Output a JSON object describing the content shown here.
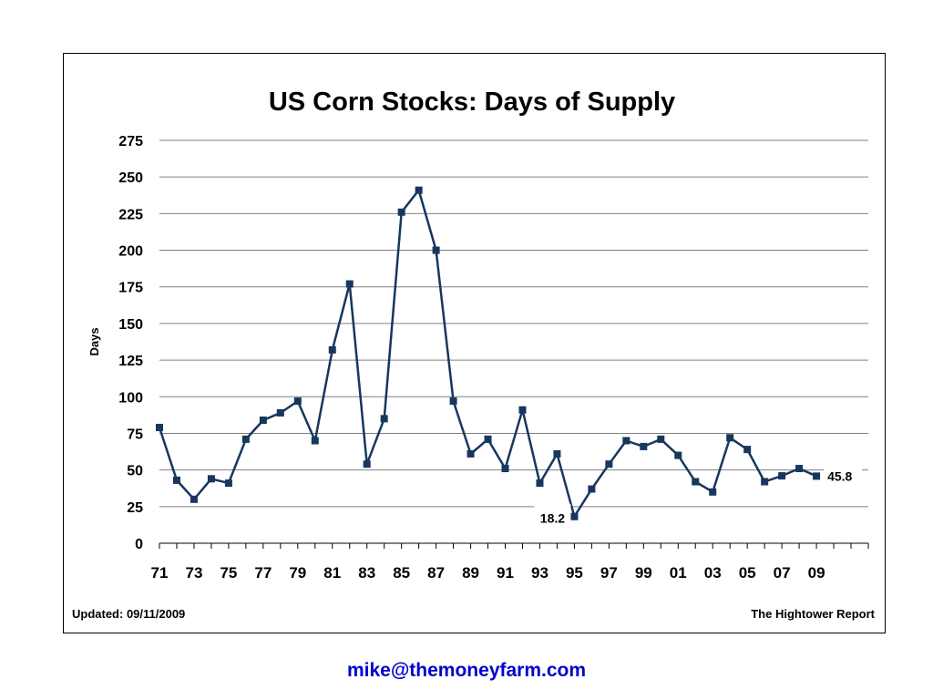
{
  "chart_data": {
    "type": "line",
    "title": "US Corn Stocks: Days of Supply",
    "ylabel": "Days",
    "xlabel": "",
    "ylim": [
      0,
      275
    ],
    "yticks": [
      0,
      25,
      50,
      75,
      100,
      125,
      150,
      175,
      200,
      225,
      250,
      275
    ],
    "xlim": [
      1971,
      2012
    ],
    "x_tick_labels": [
      "71",
      "73",
      "75",
      "77",
      "79",
      "81",
      "83",
      "85",
      "87",
      "89",
      "91",
      "93",
      "95",
      "97",
      "99",
      "01",
      "03",
      "05",
      "07",
      "09"
    ],
    "x_tick_label_years": [
      1971,
      1973,
      1975,
      1977,
      1979,
      1981,
      1983,
      1985,
      1987,
      1989,
      1991,
      1993,
      1995,
      1997,
      1999,
      2001,
      2003,
      2005,
      2007,
      2009
    ],
    "grid": true,
    "series": [
      {
        "color": "#17375e",
        "x": [
          1971,
          1972,
          1973,
          1974,
          1975,
          1976,
          1977,
          1978,
          1979,
          1980,
          1981,
          1982,
          1983,
          1984,
          1985,
          1986,
          1987,
          1988,
          1989,
          1990,
          1991,
          1992,
          1993,
          1994,
          1995,
          1996,
          1997,
          1998,
          1999,
          2000,
          2001,
          2002,
          2003,
          2004,
          2005,
          2006,
          2007,
          2008,
          2009
        ],
        "values": [
          79,
          43,
          30,
          44,
          41,
          71,
          84,
          89,
          97,
          70,
          132,
          177,
          54,
          85,
          226,
          241,
          200,
          97,
          61,
          71,
          51,
          91,
          41,
          61,
          18.2,
          37,
          54,
          70,
          66,
          71,
          60,
          42,
          35,
          72,
          64,
          42,
          46,
          51,
          45.8
        ]
      }
    ],
    "annotations": [
      {
        "text": "18.2",
        "x": 1995,
        "value": 18.2
      },
      {
        "text": "45.8",
        "x": 2009,
        "value": 45.8
      }
    ]
  },
  "footer": {
    "updated": "Updated: 09/11/2009",
    "source": "The Hightower Report"
  },
  "contact": {
    "email": "mike@themoneyfarm.com"
  }
}
